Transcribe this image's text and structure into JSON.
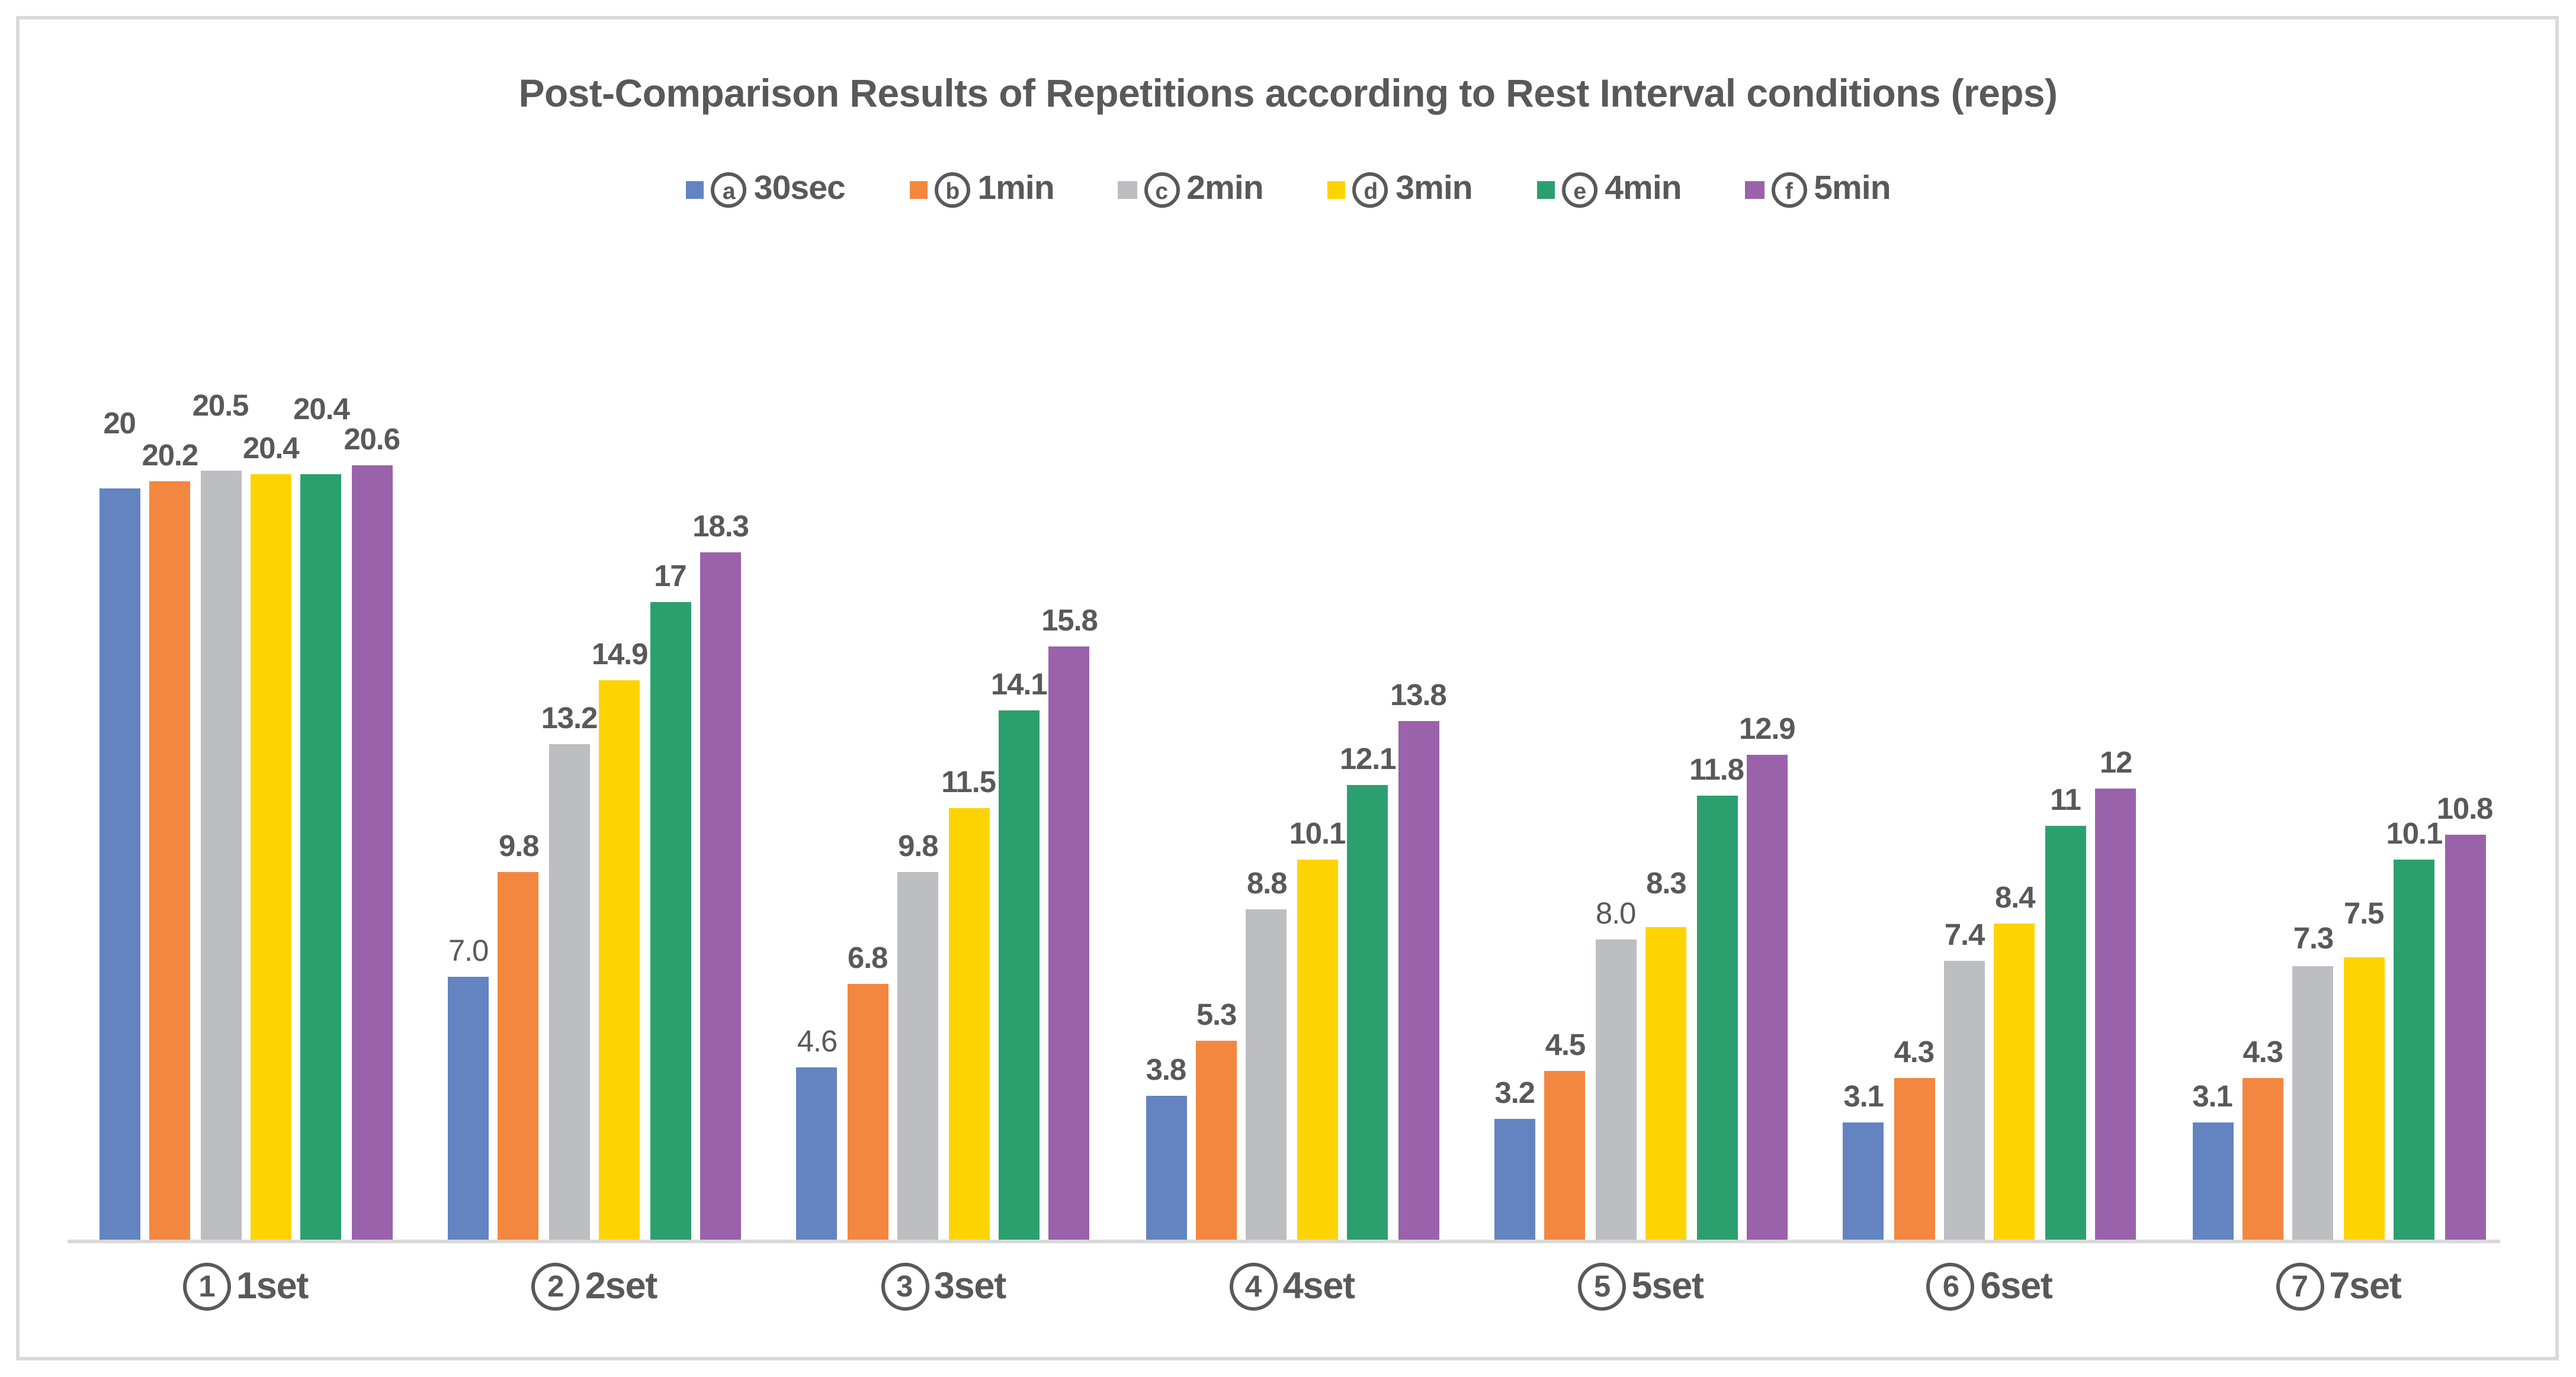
{
  "chart_data": {
    "type": "bar",
    "title": "Post-Comparison Results of Repetitions according to Rest Interval conditions (reps)",
    "categories": [
      {
        "circled": "1",
        "label": "1set"
      },
      {
        "circled": "2",
        "label": "2set"
      },
      {
        "circled": "3",
        "label": "3set"
      },
      {
        "circled": "4",
        "label": "4set"
      },
      {
        "circled": "5",
        "label": "5set"
      },
      {
        "circled": "6",
        "label": "6set"
      },
      {
        "circled": "7",
        "label": "7set"
      }
    ],
    "series": [
      {
        "key": "30sec",
        "circled": "a",
        "label": "30sec",
        "color": "#6484C1",
        "values": [
          "20",
          "7.0",
          "4.6",
          "3.8",
          "3.2",
          "3.1",
          "3.1"
        ]
      },
      {
        "key": "1min",
        "circled": "b",
        "label": "1min",
        "color": "#F3873F",
        "values": [
          "20.2",
          "9.8",
          "6.8",
          "5.3",
          "4.5",
          "4.3",
          "4.3"
        ]
      },
      {
        "key": "2min",
        "circled": "c",
        "label": "2min",
        "color": "#BCBEC2",
        "values": [
          "20.5",
          "13.2",
          "9.8",
          "8.8",
          "8.0",
          "7.4",
          "7.3"
        ]
      },
      {
        "key": "3min",
        "circled": "d",
        "label": "3min",
        "color": "#FDD402",
        "values": [
          "20.4",
          "14.9",
          "11.5",
          "10.1",
          "8.3",
          "8.4",
          "7.5"
        ]
      },
      {
        "key": "4min",
        "circled": "e",
        "label": "4min",
        "color": "#2BA06E",
        "values": [
          "20.4",
          "17",
          "14.1",
          "12.1",
          "11.8",
          "11",
          "10.1"
        ]
      },
      {
        "key": "5min",
        "circled": "f",
        "label": "5min",
        "color": "#9A62AB",
        "values": [
          "20.6",
          "18.3",
          "15.8",
          "13.8",
          "12.9",
          "12",
          "10.8"
        ]
      }
    ],
    "ylim": [
      0,
      21.3
    ],
    "unit": "reps",
    "grid": "off",
    "y_axis_labels": "none",
    "legend_position": "top",
    "axis_color": "#D9D9D9",
    "text_color": "#595959",
    "background": "#FFFFFF",
    "label_layout": {
      "regular_weight_labels": [
        {
          "cat": 1,
          "series": 0
        },
        {
          "cat": 2,
          "series": 0
        },
        {
          "cat": 4,
          "series": 2
        }
      ],
      "cat0_raised_series": [
        0,
        2,
        4
      ],
      "raised_pair_labels": [
        {
          "cat": 4,
          "series": 3
        },
        {
          "cat": 6,
          "series": 3
        }
      ]
    }
  }
}
